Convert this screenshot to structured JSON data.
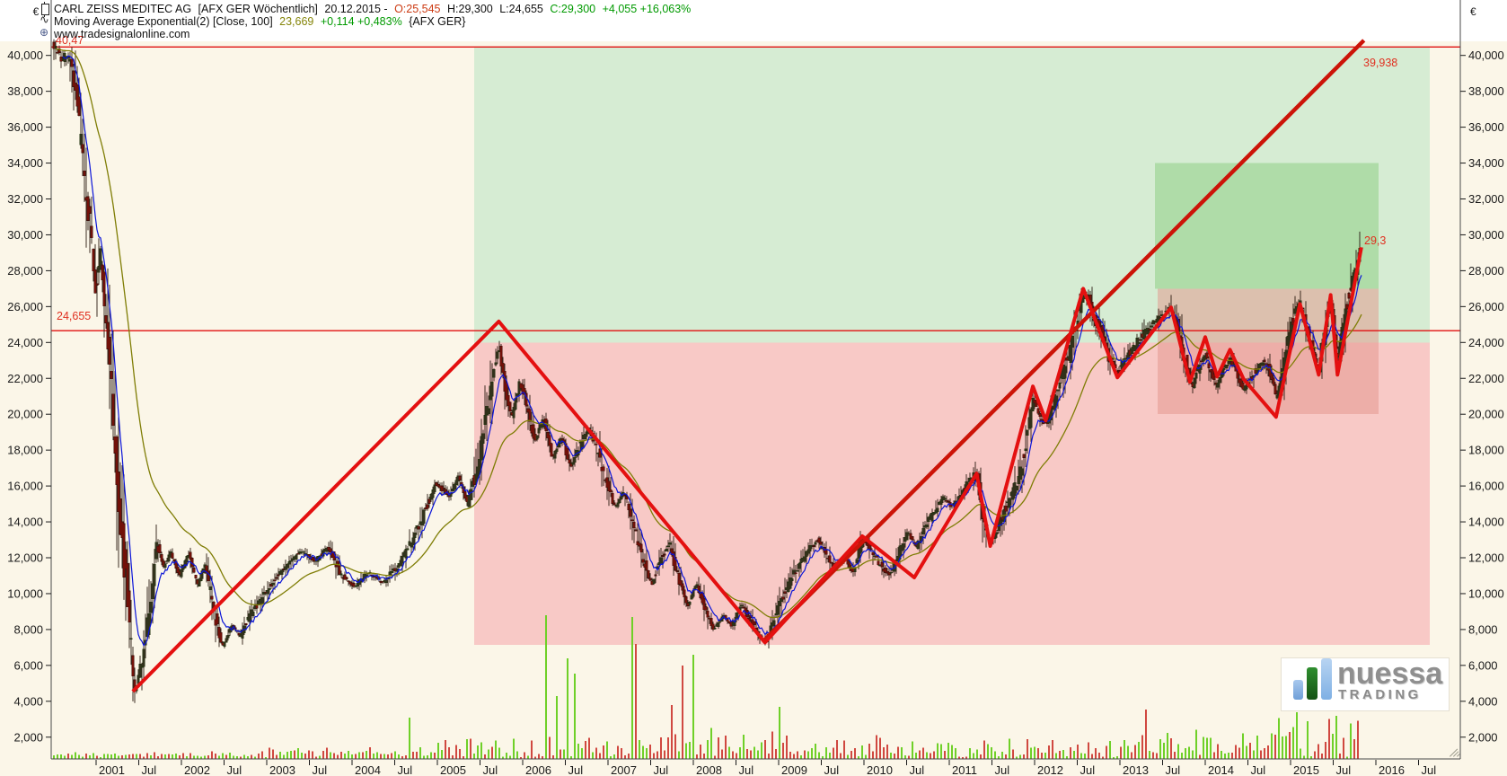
{
  "header": {
    "title": "CARL ZEISS MEDITEC AG",
    "context": "[AFX GER  Wöchentlich]",
    "date": "20.12.2015 -",
    "open": "O:25,545",
    "high": "H:29,300",
    "low": "L:24,655",
    "close": "C:29,300",
    "change": "+4,055 +16,063%",
    "indicator": {
      "name": "Moving Average Exponential(2) [Close, 100]",
      "value": "23,669",
      "change": "+0,114 +0,483%",
      "suffix": "{AFX GER}"
    },
    "watermark": "www.tradesignalonline.com"
  },
  "logo": {
    "name": "nuessa",
    "sub": "TRADING"
  },
  "chart_data": {
    "type": "candlestick",
    "title": "CARL ZEISS MEDITEC AG [AFX GER] weekly, with EMA overlays, zigzag and trend channel zones",
    "y_axis": {
      "currency": "€",
      "min": 2000,
      "max": 40000,
      "step": 2000,
      "side": "both"
    },
    "x_axis": {
      "tick_years": [
        2001,
        2002,
        2003,
        2004,
        2005,
        2006,
        2007,
        2008,
        2009,
        2010,
        2011,
        2012,
        2013,
        2014,
        2015,
        2016
      ],
      "mid_label": "Jul"
    },
    "levels": [
      {
        "label": "40,47",
        "price": 40470
      },
      {
        "label": "24,655",
        "price": 24655
      }
    ],
    "trendline": {
      "from": {
        "year": 2008.81,
        "price": 7300
      },
      "to": {
        "year": 2015.86,
        "price": 40840
      },
      "label": "39,938"
    },
    "zigzag": {
      "label_last": "29,3",
      "points": [
        [
          2001.43,
          4550
        ],
        [
          2005.72,
          25170
        ],
        [
          2008.84,
          7280
        ],
        [
          2009.98,
          13200
        ],
        [
          2010.59,
          10900
        ],
        [
          2011.32,
          16700
        ],
        [
          2011.48,
          12650
        ],
        [
          2011.98,
          21550
        ],
        [
          2012.13,
          19650
        ],
        [
          2012.57,
          27000
        ],
        [
          2012.97,
          22050
        ],
        [
          2013.6,
          25950
        ],
        [
          2013.82,
          21800
        ],
        [
          2014.0,
          24300
        ],
        [
          2014.14,
          22100
        ],
        [
          2014.29,
          23600
        ],
        [
          2014.45,
          21950
        ],
        [
          2014.83,
          19850
        ],
        [
          2015.11,
          26150
        ],
        [
          2015.33,
          22200
        ],
        [
          2015.47,
          26650
        ],
        [
          2015.55,
          22200
        ],
        [
          2015.83,
          29300
        ]
      ]
    },
    "zones": [
      {
        "x1": 2005.43,
        "x2": 2016.63,
        "price_top": 40470,
        "price_bottom": 24000,
        "color": "#d6ecd3",
        "opacity": 1
      },
      {
        "x1": 2005.43,
        "x2": 2016.63,
        "price_top": 24000,
        "price_bottom": 7150,
        "color": "#f8c9c6",
        "opacity": 1
      },
      {
        "x1": 2013.41,
        "x2": 2016.03,
        "price_top": 34000,
        "price_bottom": 27000,
        "color": "#afdca8",
        "opacity": 1
      },
      {
        "x1": 2013.44,
        "x2": 2016.03,
        "price_top": 27000,
        "price_bottom": 20000,
        "color": "#e2938a",
        "opacity": 0.5
      }
    ],
    "close_path": [
      [
        2000.51,
        40500
      ],
      [
        2000.59,
        39800
      ],
      [
        2000.69,
        40300
      ],
      [
        2000.77,
        37500
      ],
      [
        2000.84,
        34000
      ],
      [
        2000.93,
        30500
      ],
      [
        2000.99,
        27000
      ],
      [
        2001.05,
        29000
      ],
      [
        2001.12,
        24500
      ],
      [
        2001.18,
        21000
      ],
      [
        2001.24,
        16000
      ],
      [
        2001.31,
        12500
      ],
      [
        2001.37,
        9500
      ],
      [
        2001.45,
        4400
      ],
      [
        2001.54,
        6500
      ],
      [
        2001.62,
        9000
      ],
      [
        2001.71,
        12800
      ],
      [
        2001.79,
        11500
      ],
      [
        2001.87,
        12300
      ],
      [
        2001.98,
        11000
      ],
      [
        2002.08,
        12200
      ],
      [
        2002.19,
        10500
      ],
      [
        2002.27,
        11800
      ],
      [
        2002.38,
        9000
      ],
      [
        2002.48,
        7000
      ],
      [
        2002.59,
        8200
      ],
      [
        2002.69,
        7600
      ],
      [
        2002.8,
        8800
      ],
      [
        2002.93,
        9600
      ],
      [
        2003.08,
        10800
      ],
      [
        2003.24,
        11600
      ],
      [
        2003.4,
        12400
      ],
      [
        2003.56,
        11800
      ],
      [
        2003.72,
        12600
      ],
      [
        2003.87,
        11000
      ],
      [
        2004.03,
        10400
      ],
      [
        2004.19,
        11200
      ],
      [
        2004.35,
        10600
      ],
      [
        2004.51,
        11400
      ],
      [
        2004.66,
        12600
      ],
      [
        2004.82,
        14200
      ],
      [
        2004.98,
        16200
      ],
      [
        2005.14,
        15400
      ],
      [
        2005.24,
        16600
      ],
      [
        2005.35,
        15000
      ],
      [
        2005.45,
        16800
      ],
      [
        2005.56,
        19500
      ],
      [
        2005.64,
        22000
      ],
      [
        2005.72,
        23800
      ],
      [
        2005.79,
        21500
      ],
      [
        2005.87,
        19800
      ],
      [
        2005.96,
        21800
      ],
      [
        2006.04,
        20500
      ],
      [
        2006.14,
        18500
      ],
      [
        2006.24,
        19800
      ],
      [
        2006.35,
        17500
      ],
      [
        2006.45,
        18800
      ],
      [
        2006.56,
        17000
      ],
      [
        2006.66,
        18200
      ],
      [
        2006.77,
        19300
      ],
      [
        2006.87,
        18000
      ],
      [
        2006.98,
        16200
      ],
      [
        2007.08,
        14800
      ],
      [
        2007.19,
        15800
      ],
      [
        2007.29,
        13800
      ],
      [
        2007.4,
        12000
      ],
      [
        2007.51,
        10500
      ],
      [
        2007.61,
        11800
      ],
      [
        2007.72,
        12800
      ],
      [
        2007.82,
        10800
      ],
      [
        2007.93,
        9200
      ],
      [
        2008.03,
        10600
      ],
      [
        2008.14,
        9000
      ],
      [
        2008.24,
        8000
      ],
      [
        2008.35,
        8800
      ],
      [
        2008.45,
        8200
      ],
      [
        2008.56,
        9400
      ],
      [
        2008.66,
        8600
      ],
      [
        2008.77,
        7600
      ],
      [
        2008.84,
        7300
      ],
      [
        2008.93,
        8400
      ],
      [
        2009.03,
        9600
      ],
      [
        2009.14,
        10800
      ],
      [
        2009.24,
        11600
      ],
      [
        2009.35,
        12400
      ],
      [
        2009.45,
        13000
      ],
      [
        2009.56,
        12200
      ],
      [
        2009.66,
        11400
      ],
      [
        2009.77,
        12000
      ],
      [
        2009.87,
        11200
      ],
      [
        2009.98,
        13100
      ],
      [
        2010.08,
        12400
      ],
      [
        2010.19,
        11600
      ],
      [
        2010.29,
        11000
      ],
      [
        2010.4,
        12200
      ],
      [
        2010.51,
        13400
      ],
      [
        2010.61,
        12600
      ],
      [
        2010.72,
        13800
      ],
      [
        2010.82,
        14600
      ],
      [
        2010.93,
        15400
      ],
      [
        2011.03,
        14800
      ],
      [
        2011.14,
        15600
      ],
      [
        2011.24,
        16400
      ],
      [
        2011.32,
        16700
      ],
      [
        2011.4,
        14000
      ],
      [
        2011.48,
        12800
      ],
      [
        2011.56,
        13600
      ],
      [
        2011.66,
        14800
      ],
      [
        2011.77,
        16000
      ],
      [
        2011.87,
        17500
      ],
      [
        2011.98,
        21000
      ],
      [
        2012.06,
        19800
      ],
      [
        2012.13,
        19400
      ],
      [
        2012.21,
        20600
      ],
      [
        2012.29,
        21800
      ],
      [
        2012.38,
        23000
      ],
      [
        2012.46,
        24500
      ],
      [
        2012.55,
        26300
      ],
      [
        2012.61,
        26800
      ],
      [
        2012.69,
        25400
      ],
      [
        2012.78,
        24600
      ],
      [
        2012.86,
        23200
      ],
      [
        2012.97,
        22300
      ],
      [
        2013.05,
        23000
      ],
      [
        2013.16,
        23800
      ],
      [
        2013.26,
        24400
      ],
      [
        2013.37,
        25000
      ],
      [
        2013.47,
        25400
      ],
      [
        2013.6,
        25900
      ],
      [
        2013.68,
        24600
      ],
      [
        2013.77,
        23000
      ],
      [
        2013.84,
        21400
      ],
      [
        2013.92,
        22600
      ],
      [
        2014.0,
        23400
      ],
      [
        2014.06,
        22400
      ],
      [
        2014.13,
        21600
      ],
      [
        2014.21,
        22400
      ],
      [
        2014.29,
        23200
      ],
      [
        2014.37,
        22200
      ],
      [
        2014.44,
        21400
      ],
      [
        2014.53,
        22000
      ],
      [
        2014.61,
        22600
      ],
      [
        2014.69,
        23000
      ],
      [
        2014.77,
        22200
      ],
      [
        2014.83,
        20900
      ],
      [
        2014.91,
        22800
      ],
      [
        2014.99,
        24600
      ],
      [
        2015.06,
        25800
      ],
      [
        2015.11,
        26300
      ],
      [
        2015.17,
        25000
      ],
      [
        2015.24,
        23800
      ],
      [
        2015.33,
        22600
      ],
      [
        2015.4,
        24600
      ],
      [
        2015.47,
        26500
      ],
      [
        2015.55,
        23000
      ],
      [
        2015.62,
        25200
      ],
      [
        2015.69,
        26800
      ],
      [
        2015.76,
        27800
      ],
      [
        2015.8,
        28800
      ],
      [
        2015.83,
        29300
      ]
    ],
    "moving_averages": [
      {
        "name": "fast-ema-blue",
        "color": "#0a14d8"
      },
      {
        "name": "ema-100-olive",
        "color": "#7f7d05",
        "last_value": "23,669"
      }
    ],
    "volume": {
      "eras": [
        [
          2000.4,
          2003.0,
          8
        ],
        [
          2003.0,
          2005.0,
          15
        ],
        [
          2005.0,
          2006.6,
          30
        ],
        [
          2006.6,
          2008.3,
          42
        ],
        [
          2008.3,
          2009.3,
          36
        ],
        [
          2009.3,
          2013.0,
          26
        ],
        [
          2013.0,
          2014.6,
          36
        ],
        [
          2014.6,
          2015.9,
          52
        ]
      ],
      "spikes": [
        [
          2004.67,
          46,
          "g"
        ],
        [
          2006.27,
          160,
          "g"
        ],
        [
          2006.4,
          70,
          "g"
        ],
        [
          2006.54,
          112,
          "g"
        ],
        [
          2006.61,
          95,
          "g"
        ],
        [
          2007.27,
          158,
          "g"
        ],
        [
          2007.34,
          128,
          "r"
        ],
        [
          2007.75,
          60,
          "r"
        ],
        [
          2007.87,
          104,
          "r"
        ],
        [
          2007.99,
          116,
          "g"
        ],
        [
          2009.03,
          58,
          "g"
        ],
        [
          2013.3,
          55,
          "r"
        ],
        [
          2015.07,
          52,
          "g"
        ],
        [
          2015.55,
          48,
          "g"
        ]
      ]
    },
    "colors": {
      "plot_bg": "#fbf6e8",
      "header_bg": "#ffffff",
      "axis_line": "#4a4a4a",
      "candle_down_fill": "#a01208",
      "candle_down_stroke": "#43100a",
      "candle_up_stroke": "#243512",
      "wick": "#2a1a10",
      "red_line": "#e01010",
      "trend_red": "#cc1408",
      "zigzag_red": "#e41010",
      "volume_green": "#6fd028",
      "volume_red": "#d04840",
      "label_red": "#e03020"
    }
  }
}
